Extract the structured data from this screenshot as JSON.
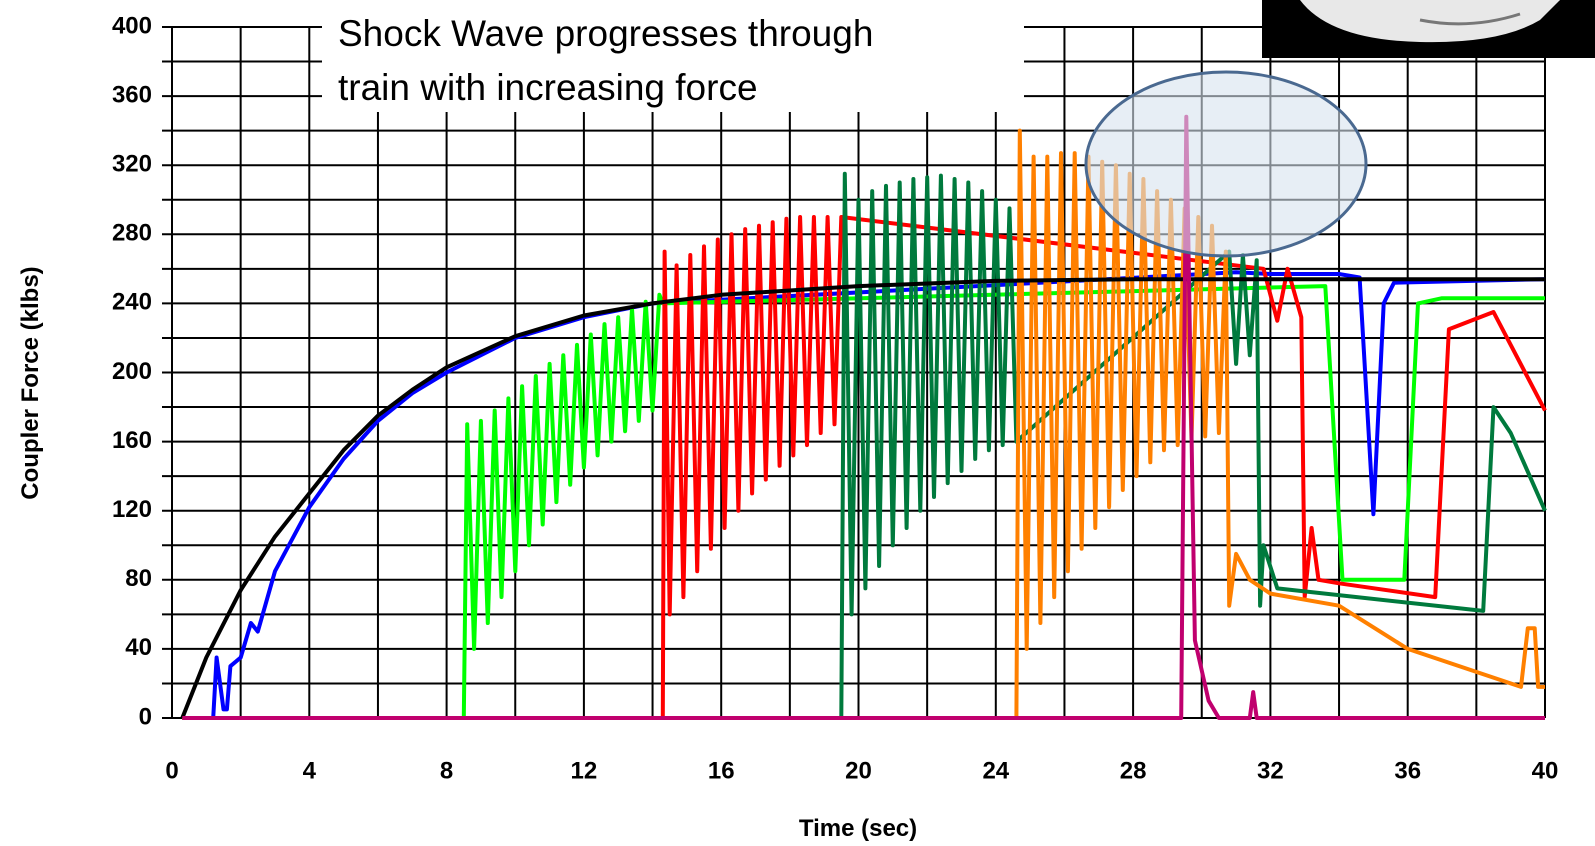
{
  "chart_data": {
    "type": "line",
    "xlabel": "Time (sec)",
    "ylabel": "Coupler Force (klbs)",
    "annotation": [
      "Shock Wave progresses through",
      "train with increasing force"
    ],
    "xlim": [
      0,
      40
    ],
    "ylim": [
      0,
      400
    ],
    "xticks": [
      0,
      4,
      8,
      12,
      16,
      20,
      24,
      28,
      32,
      36,
      40
    ],
    "yticks": [
      0,
      40,
      80,
      120,
      160,
      200,
      240,
      280,
      320,
      360,
      400
    ],
    "minor_xticks": [
      2,
      6,
      10,
      14,
      18,
      22,
      26,
      30,
      34,
      38
    ],
    "minor_yticks": [
      20,
      60,
      100,
      140,
      180,
      220,
      260,
      300,
      340,
      380
    ],
    "grid": true,
    "series": [
      {
        "color": "#0000ff",
        "x": [
          1.2,
          1.3,
          1.5,
          1.6,
          1.7,
          2,
          2.3,
          2.5,
          3,
          4,
          5,
          6,
          7,
          8,
          10,
          12,
          14,
          31,
          32,
          34,
          34.6,
          35,
          35.3,
          35.6,
          40
        ],
        "values": [
          0,
          35,
          5,
          5,
          30,
          35,
          55,
          50,
          85,
          122,
          150,
          172,
          188,
          200,
          220,
          232,
          240,
          258,
          257,
          257,
          255,
          118,
          240,
          252,
          254
        ]
      },
      {
        "color": "#00ff00",
        "x": [
          0.3,
          8.5,
          8.6,
          8.8,
          9.0,
          9.2,
          9.4,
          9.6,
          9.8,
          10.0,
          10.2,
          10.4,
          10.6,
          10.8,
          11.0,
          11.2,
          11.4,
          11.6,
          11.8,
          12.0,
          12.2,
          12.4,
          12.6,
          12.8,
          13.0,
          13.2,
          13.4,
          13.6,
          13.8,
          14.0,
          14.2,
          14.3,
          33.6,
          34.1,
          35.9,
          36.3,
          37,
          40
        ],
        "values": [
          0,
          0,
          170,
          40,
          172,
          55,
          178,
          70,
          185,
          85,
          192,
          100,
          198,
          112,
          205,
          125,
          210,
          135,
          216,
          145,
          222,
          152,
          228,
          160,
          232,
          166,
          237,
          172,
          241,
          178,
          245,
          240,
          250,
          80,
          80,
          240,
          243,
          243
        ]
      },
      {
        "color": "#ff0000",
        "x": [
          0.3,
          14.3,
          14.35,
          14.5,
          14.7,
          14.9,
          15.1,
          15.3,
          15.5,
          15.7,
          15.9,
          16.1,
          16.3,
          16.5,
          16.7,
          16.9,
          17.1,
          17.3,
          17.5,
          17.7,
          17.9,
          18.1,
          18.3,
          18.5,
          18.7,
          18.9,
          19.1,
          19.3,
          19.5,
          31.8,
          32.2,
          32.5,
          32.9,
          33.0,
          33.2,
          33.4,
          34,
          36.8,
          37.2,
          38.5,
          40
        ],
        "values": [
          0,
          0,
          270,
          60,
          262,
          70,
          268,
          85,
          273,
          98,
          277,
          110,
          280,
          120,
          283,
          130,
          285,
          138,
          287,
          146,
          289,
          152,
          290,
          158,
          290,
          165,
          290,
          170,
          290,
          260,
          230,
          260,
          232,
          70,
          110,
          80,
          78,
          70,
          225,
          235,
          178
        ]
      },
      {
        "color": "#007a3d",
        "x": [
          0.3,
          19.5,
          19.6,
          19.8,
          20.0,
          20.2,
          20.4,
          20.6,
          20.8,
          21.0,
          21.2,
          21.4,
          21.6,
          21.8,
          22.0,
          22.2,
          22.4,
          22.6,
          22.8,
          23.0,
          23.2,
          23.4,
          23.6,
          23.8,
          24.0,
          24.2,
          24.4,
          24.6,
          30.8,
          31.0,
          31.2,
          31.4,
          31.6,
          31.7,
          31.8,
          32.2,
          38.2,
          38.5,
          39,
          40
        ],
        "values": [
          0,
          0,
          315,
          60,
          300,
          75,
          305,
          88,
          308,
          100,
          310,
          110,
          312,
          120,
          313,
          128,
          314,
          136,
          312,
          143,
          310,
          150,
          305,
          155,
          300,
          158,
          295,
          160,
          270,
          205,
          268,
          210,
          265,
          65,
          100,
          75,
          62,
          180,
          165,
          120
        ]
      },
      {
        "color": "#ff8000",
        "x": [
          0.3,
          24.6,
          24.7,
          24.9,
          25.1,
          25.3,
          25.5,
          25.7,
          25.9,
          26.1,
          26.3,
          26.5,
          26.7,
          26.9,
          27.1,
          27.3,
          27.5,
          27.7,
          27.9,
          28.1,
          28.3,
          28.5,
          28.7,
          28.9,
          29.1,
          29.3,
          29.5,
          29.7,
          29.9,
          30.1,
          30.3,
          30.5,
          30.7,
          30.8,
          31.0,
          31.4,
          32,
          34,
          36,
          39.3,
          39.5,
          39.7,
          39.8,
          40
        ],
        "values": [
          0,
          0,
          340,
          40,
          325,
          55,
          325,
          70,
          327,
          85,
          327,
          98,
          325,
          110,
          322,
          122,
          320,
          132,
          315,
          140,
          312,
          148,
          305,
          155,
          300,
          158,
          295,
          162,
          290,
          163,
          285,
          165,
          270,
          65,
          95,
          80,
          72,
          65,
          40,
          18,
          52,
          52,
          18,
          18
        ]
      },
      {
        "color": "#000000",
        "x": [
          0.3,
          1,
          2,
          3,
          4,
          5,
          6,
          7,
          8,
          10,
          12,
          14,
          16,
          20,
          24,
          28,
          32,
          40
        ],
        "values": [
          0,
          35,
          74,
          105,
          130,
          155,
          175,
          190,
          203,
          221,
          233,
          240,
          245,
          250,
          253,
          254,
          254,
          254
        ]
      },
      {
        "color": "#c0006e",
        "x": [
          0.3,
          29.4,
          29.55,
          29.8,
          30.2,
          30.5,
          31.4,
          31.5,
          31.6,
          40
        ],
        "values": [
          0,
          0,
          348,
          45,
          10,
          0,
          0,
          15,
          0,
          0
        ]
      }
    ]
  }
}
